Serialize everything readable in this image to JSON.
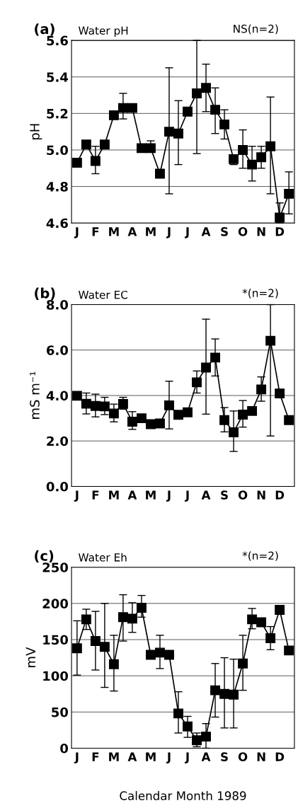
{
  "chart_data": [
    {
      "type": "line",
      "title": "Water pH",
      "ylabel": "pH",
      "annotations": [
        "(a)",
        "NS(n=2)"
      ],
      "marker": "square",
      "line_style": "solid",
      "grid": "y",
      "ylim": [
        4.6,
        5.6
      ],
      "yticks": [
        {
          "value": 4.6,
          "label": "4.6"
        },
        {
          "value": 4.8,
          "label": "4.8"
        },
        {
          "value": 5.0,
          "label": "5.0"
        },
        {
          "value": 5.2,
          "label": "5.2"
        },
        {
          "value": 5.4,
          "label": "5.4"
        },
        {
          "value": 5.6,
          "label": "5.6"
        }
      ],
      "categories": [
        "J",
        null,
        "F",
        null,
        "M",
        null,
        "A",
        null,
        "M",
        null,
        "J",
        null,
        "J",
        null,
        "A",
        null,
        "S",
        null,
        "O",
        null,
        "N",
        null,
        "D",
        null
      ],
      "series": [
        {
          "color": "#000000",
          "values": [
            4.93,
            5.03,
            4.94,
            5.03,
            5.19,
            5.23,
            5.23,
            5.01,
            5.01,
            4.87,
            5.1,
            5.09,
            5.21,
            5.31,
            5.34,
            5.22,
            5.14,
            4.95,
            5.0,
            4.92,
            4.96,
            5.02,
            4.63,
            4.76
          ],
          "errors": [
            null,
            null,
            [
              4.87,
              5.02
            ],
            null,
            null,
            [
              5.17,
              5.31
            ],
            null,
            null,
            [
              4.99,
              5.05
            ],
            null,
            [
              4.76,
              5.45
            ],
            [
              4.92,
              5.27
            ],
            null,
            [
              4.98,
              5.6
            ],
            [
              5.21,
              5.47
            ],
            [
              5.09,
              5.34
            ],
            [
              5.06,
              5.22
            ],
            [
              4.92,
              4.97
            ],
            [
              4.9,
              5.11
            ],
            [
              4.83,
              5.02
            ],
            [
              4.9,
              5.02
            ],
            [
              4.76,
              5.29
            ],
            [
              4.6,
              4.71
            ],
            [
              4.65,
              4.88
            ]
          ]
        }
      ]
    },
    {
      "type": "line",
      "title": "Water EC",
      "ylabel": "mS m⁻¹",
      "annotations": [
        "(b)",
        "*(n=2)"
      ],
      "marker": "square",
      "line_style": "solid",
      "grid": "y",
      "ylim": [
        0,
        8
      ],
      "yticks": [
        {
          "value": 0,
          "label": "0.0"
        },
        {
          "value": 2,
          "label": "2.0"
        },
        {
          "value": 4,
          "label": "4.0"
        },
        {
          "value": 6,
          "label": "6.0"
        },
        {
          "value": 8,
          "label": "8.0"
        }
      ],
      "categories": [
        "J",
        null,
        "F",
        null,
        "M",
        null,
        "A",
        null,
        "M",
        null,
        "J",
        null,
        "J",
        null,
        "A",
        null,
        "S",
        null,
        "O",
        null,
        "N",
        null,
        "D",
        null
      ],
      "series": [
        {
          "color": "#000000",
          "values": [
            3.99,
            3.64,
            3.54,
            3.52,
            3.21,
            3.63,
            2.85,
            3.0,
            2.74,
            2.77,
            3.57,
            3.15,
            3.26,
            4.58,
            5.23,
            5.67,
            2.92,
            2.38,
            3.16,
            3.32,
            4.27,
            6.41,
            4.09,
            2.92
          ],
          "errors": [
            null,
            [
              3.19,
              4.11
            ],
            [
              3.06,
              4.06
            ],
            [
              3.16,
              3.92
            ],
            [
              2.84,
              3.62
            ],
            [
              3.4,
              3.92
            ],
            [
              2.51,
              3.29
            ],
            null,
            null,
            null,
            [
              2.53,
              4.63
            ],
            null,
            null,
            [
              4.11,
              5.08
            ],
            [
              3.18,
              7.36
            ],
            [
              4.86,
              6.49
            ],
            [
              2.4,
              3.47
            ],
            [
              1.54,
              3.32
            ],
            [
              2.61,
              3.78
            ],
            null,
            [
              3.75,
              4.82
            ],
            [
              2.22,
              8.0
            ],
            null,
            null
          ]
        }
      ]
    },
    {
      "type": "line",
      "title": "Water Eh",
      "ylabel": "mV",
      "xlabel": "Calendar Month 1989",
      "annotations": [
        "(c)",
        "*(n=2)"
      ],
      "marker": "square",
      "line_style": "solid",
      "grid": "y",
      "ylim": [
        0,
        250
      ],
      "yticks": [
        0,
        50,
        100,
        150,
        200,
        250
      ],
      "categories": [
        "J",
        null,
        "F",
        null,
        "M",
        null,
        "A",
        null,
        "M",
        null,
        "J",
        null,
        "J",
        null,
        "A",
        null,
        "S",
        null,
        "O",
        null,
        "N",
        null,
        "D",
        null
      ],
      "series": [
        {
          "color": "#000000",
          "values": [
            138,
            178,
            148,
            140,
            116,
            181,
            179,
            194,
            129,
            132,
            129,
            48,
            30,
            11,
            16,
            80,
            75,
            74,
            117,
            178,
            174,
            152,
            191,
            135
          ],
          "errors": [
            [
              101,
              176
            ],
            [
              164,
              192
            ],
            [
              108,
              189
            ],
            [
              84,
              200
            ],
            [
              79,
              156
            ],
            [
              148,
              212
            ],
            [
              160,
              201
            ],
            [
              181,
              211
            ],
            null,
            [
              110,
              156
            ],
            null,
            [
              21,
              78
            ],
            [
              15,
              44
            ],
            [
              2,
              21
            ],
            [
              0,
              34
            ],
            [
              43,
              117
            ],
            [
              28,
              125
            ],
            [
              28,
              123
            ],
            [
              80,
              156
            ],
            [
              165,
              193
            ],
            null,
            [
              136,
              168
            ],
            null,
            null
          ]
        }
      ]
    }
  ]
}
